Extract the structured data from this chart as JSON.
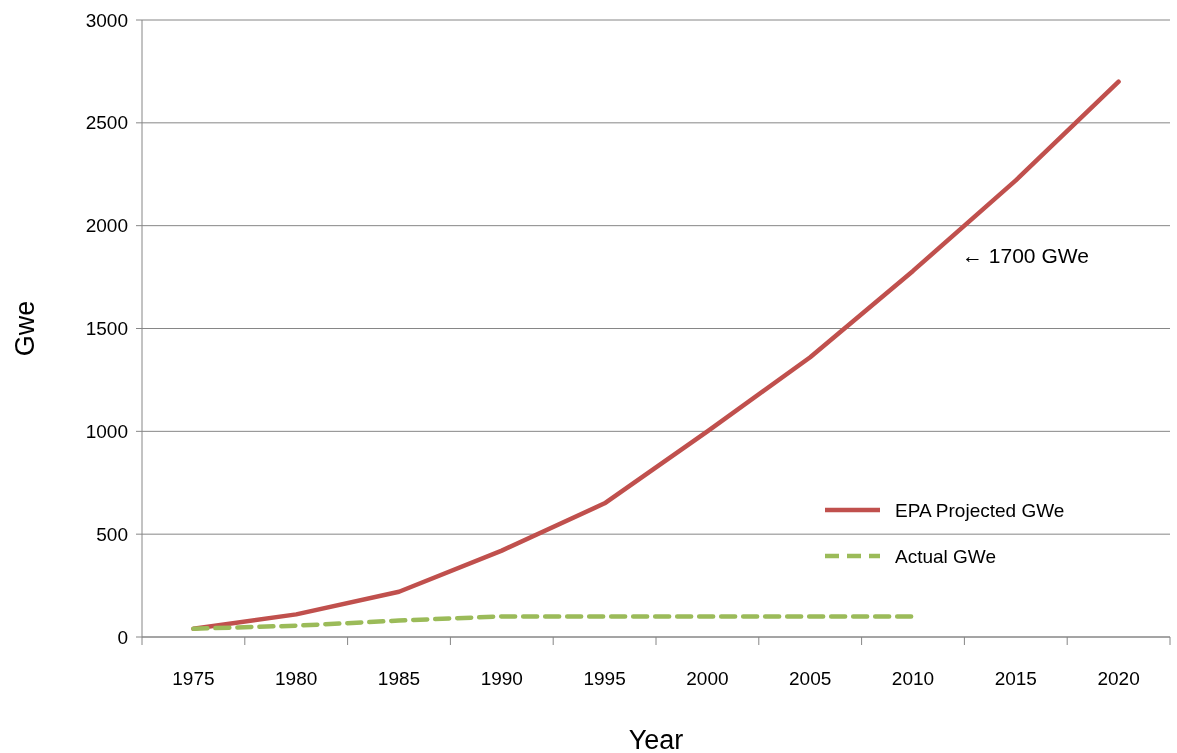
{
  "chart_data": {
    "type": "line",
    "xlabel": "Year",
    "ylabel": "Gwe",
    "categories": [
      "1975",
      "1980",
      "1985",
      "1990",
      "1995",
      "2000",
      "2005",
      "2010",
      "2015",
      "2020"
    ],
    "series": [
      {
        "name": "EPA Projected GWe",
        "color": "#c0504d",
        "line_style": "solid",
        "values": [
          40,
          110,
          220,
          420,
          650,
          1000,
          1360,
          1780,
          2220,
          2700
        ]
      },
      {
        "name": "Actual GWe",
        "color": "#9bbb59",
        "line_style": "dashed",
        "values": [
          40,
          55,
          80,
          100,
          100,
          100,
          100,
          100,
          null,
          null
        ]
      }
    ],
    "ylim": [
      0,
      3000
    ],
    "yticks": [
      0,
      500,
      1000,
      1500,
      2000,
      2500,
      3000
    ],
    "grid": "y",
    "legend": "bottom right",
    "annotations": [
      "← 1700 GWe"
    ]
  }
}
